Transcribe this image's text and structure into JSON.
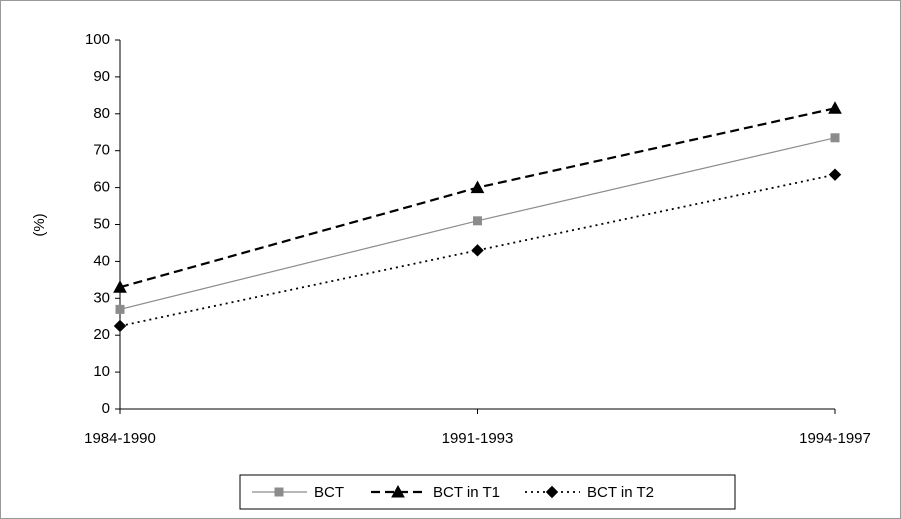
{
  "chart_data": {
    "type": "line",
    "y_label": "(%)",
    "categories": [
      "1984-1990",
      "1991-1993",
      "1994-1997"
    ],
    "series": [
      {
        "name": "BCT",
        "color": "#8c8c8c",
        "marker": "square",
        "line_style": "solid",
        "values": [
          27,
          51,
          73.5
        ]
      },
      {
        "name": "BCT in T1",
        "color": "#000000",
        "marker": "triangle",
        "line_style": "dashed",
        "values": [
          33,
          60,
          81.5
        ]
      },
      {
        "name": "BCT in T2",
        "color": "#000000",
        "marker": "diamond",
        "line_style": "dotted",
        "values": [
          22.5,
          43,
          63.5
        ]
      }
    ],
    "ylim": [
      0,
      100
    ],
    "yticks": [
      0,
      10,
      20,
      30,
      40,
      50,
      60,
      70,
      80,
      90,
      100
    ],
    "grid": false,
    "legend": "bottom"
  }
}
